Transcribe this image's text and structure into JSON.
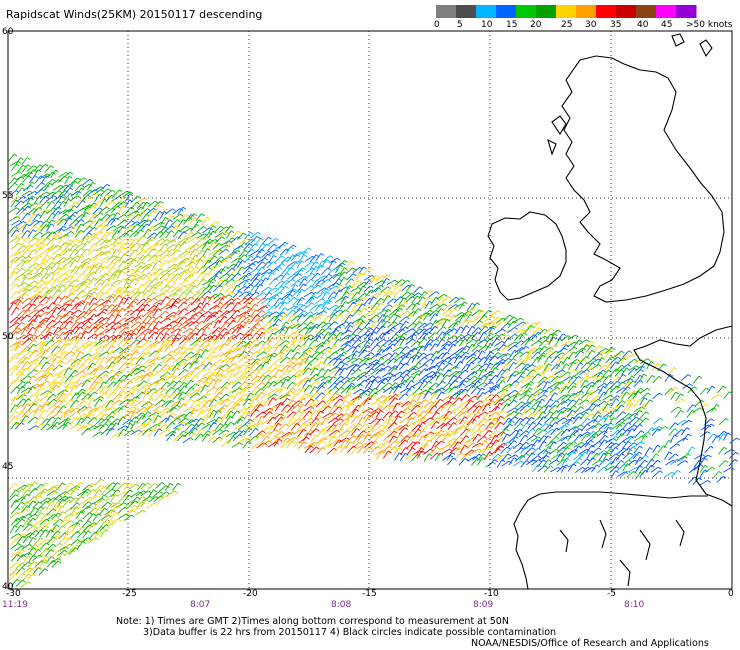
{
  "title": "Rapidscat Winds(25KM) 20150117 descending",
  "legend": {
    "labels": [
      "0",
      "5",
      "10",
      "15",
      "20",
      "25",
      "30",
      "35",
      "40",
      "45",
      ">50 knots"
    ],
    "colors": [
      "#7f7f7f",
      "#4d4d4d",
      "#00b4ff",
      "#0064ff",
      "#00c800",
      "#00a000",
      "#ffd200",
      "#ffa000",
      "#ff0000",
      "#c80000",
      "#8b4513",
      "#ff00ff",
      "#9400d3"
    ]
  },
  "axes": {
    "lon_ticks": [
      "-30",
      "-25",
      "-20",
      "-15",
      "-10",
      "-5",
      "0"
    ],
    "lat_ticks": [
      "60",
      "55",
      "50",
      "45",
      "40"
    ],
    "lon_range": [
      -30,
      0
    ],
    "lat_range": [
      40,
      60
    ]
  },
  "times": {
    "first": "11:19",
    "labels": [
      "8:07",
      "8:08",
      "8:09",
      "8:10"
    ]
  },
  "notes": {
    "line1": "Note: 1) Times are GMT 2)Times along bottom correspond to measurement at 50N",
    "line2": "3)Data buffer is 22 hrs from 20150117 4) Black circles indicate possible contamination",
    "line3": "NOAA/NESDIS/Office of Research and Applications"
  },
  "colors": {
    "grid": "#000000",
    "coast": "#000000"
  }
}
